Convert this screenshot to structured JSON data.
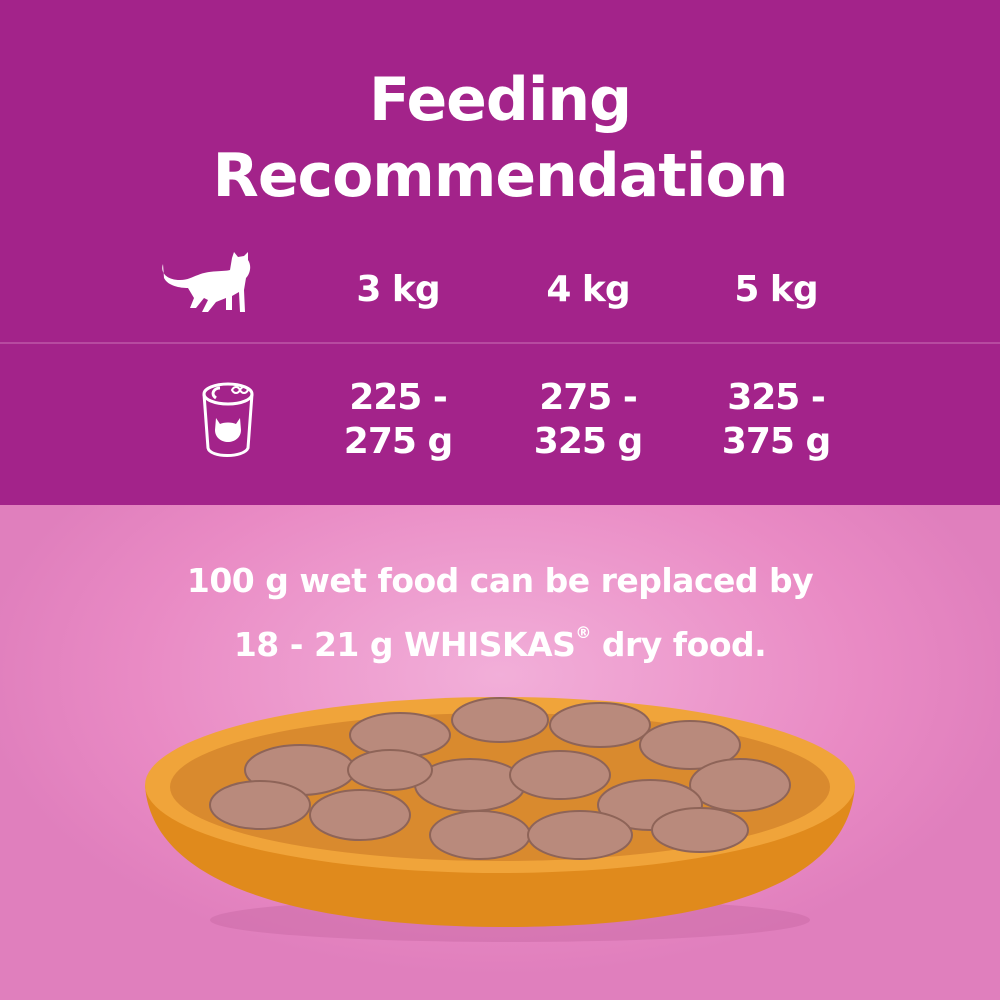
{
  "title_line1": "Feeding",
  "title_line2": "Recommendation",
  "table": {
    "row_icons": [
      "cat-icon",
      "can-icon"
    ],
    "weights": [
      "3 kg",
      "4 kg",
      "5 kg"
    ],
    "amounts": [
      {
        "line1": "225 -",
        "line2": "275 g"
      },
      {
        "line1": "275 -",
        "line2": "325 g"
      },
      {
        "line1": "325 -",
        "line2": "375 g"
      }
    ]
  },
  "note": {
    "line1": "100 g wet food can be replaced by",
    "line2_pre": "18 - 21 g WHISKAS",
    "registered": "®",
    "line2_post": " dry food."
  },
  "colors": {
    "top_background": "#a3238a",
    "bottom_background": "#e98ac4",
    "bowl": "#e8921f"
  }
}
